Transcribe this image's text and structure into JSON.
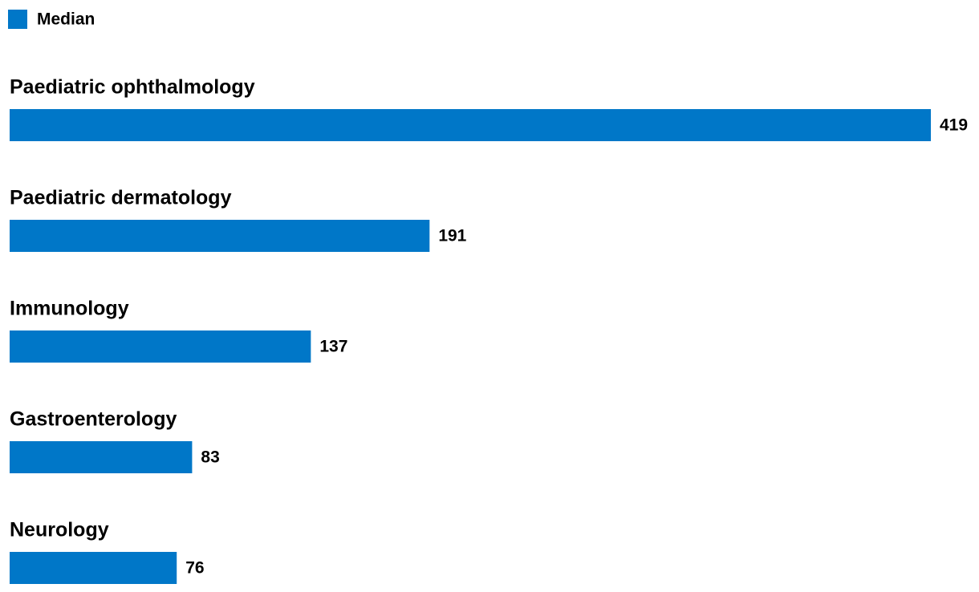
{
  "chart_data": {
    "type": "bar",
    "orientation": "horizontal",
    "categories": [
      "Paediatric ophthalmology",
      "Paediatric dermatology",
      "Immunology",
      "Gastroenterology",
      "Neurology"
    ],
    "series": [
      {
        "name": "Median",
        "color": "#0077c8",
        "values": [
          419,
          191,
          137,
          83,
          76
        ]
      }
    ],
    "legend": "top-left"
  }
}
